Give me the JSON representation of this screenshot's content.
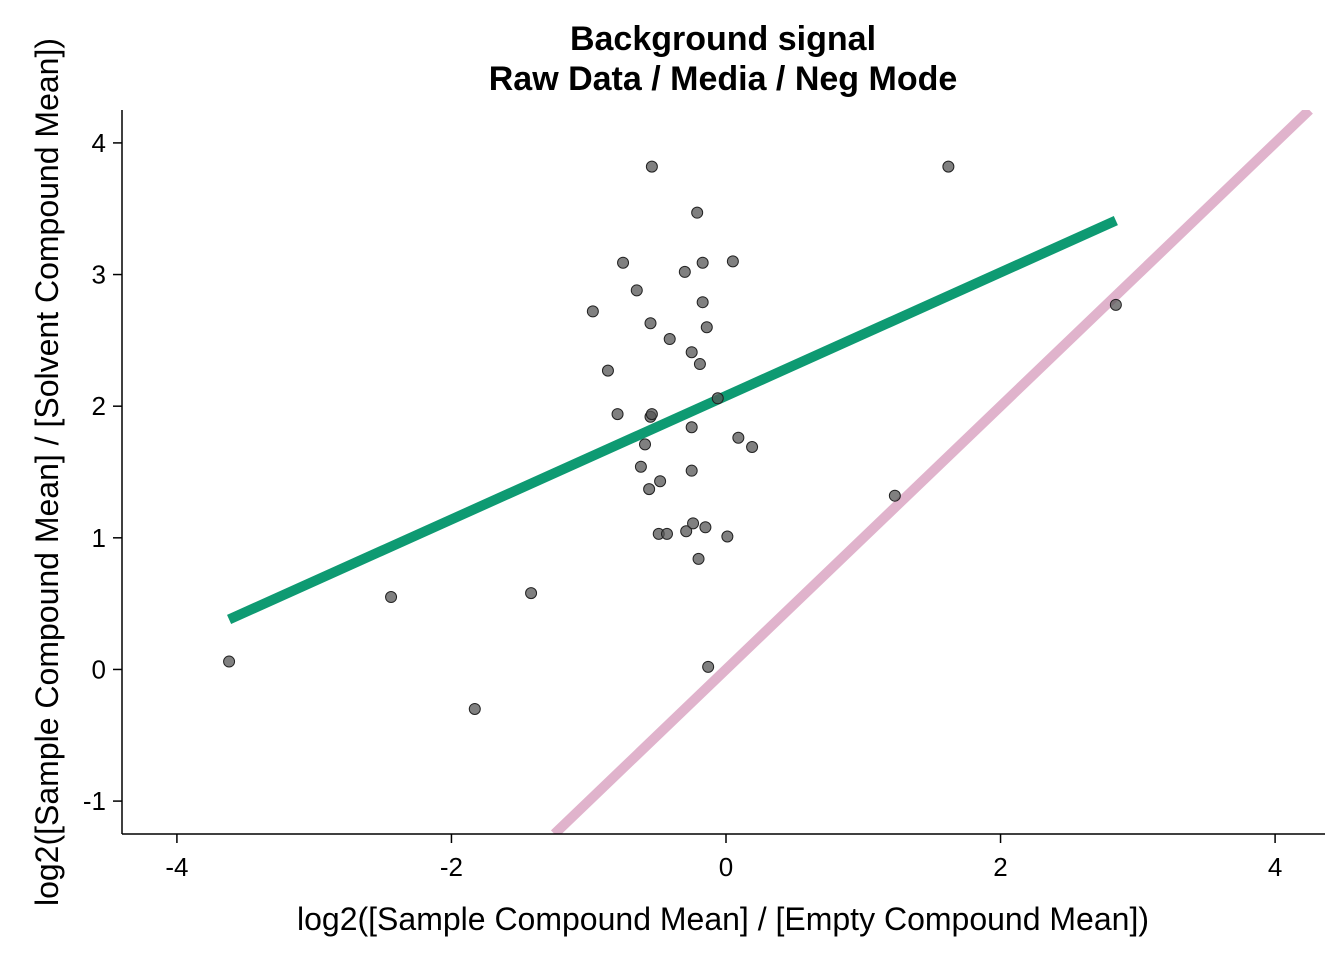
{
  "chart_data": {
    "type": "scatter",
    "title": "Background signal",
    "subtitle": "Raw Data / Media / Neg Mode",
    "xlabel": "log2([Sample Compound Mean] / [Empty Compound Mean])",
    "ylabel": "log2([Sample Compound Mean] / [Solvent Compound Mean])",
    "xlim": [
      -4.4,
      4.4
    ],
    "ylim": [
      -1.25,
      4.25
    ],
    "x_ticks": [
      -4,
      -2,
      0,
      2,
      4
    ],
    "y_ticks": [
      -1,
      0,
      1,
      2,
      3,
      4
    ],
    "x_tick_labels": [
      "-4",
      "-2",
      "0",
      "2",
      "4"
    ],
    "y_tick_labels": [
      "-1",
      "0",
      "1",
      "2",
      "3",
      "4"
    ],
    "grid": false,
    "points": [
      [
        -3.62,
        0.06
      ],
      [
        -2.44,
        0.55
      ],
      [
        -1.83,
        -0.3
      ],
      [
        -1.42,
        0.58
      ],
      [
        -0.97,
        2.72
      ],
      [
        -0.86,
        2.27
      ],
      [
        -0.79,
        1.94
      ],
      [
        -0.75,
        3.09
      ],
      [
        -0.65,
        2.88
      ],
      [
        -0.62,
        1.54
      ],
      [
        -0.59,
        1.71
      ],
      [
        -0.56,
        1.37
      ],
      [
        -0.55,
        2.63
      ],
      [
        -0.55,
        1.92
      ],
      [
        -0.54,
        1.94
      ],
      [
        -0.54,
        3.82
      ],
      [
        -0.49,
        1.03
      ],
      [
        -0.48,
        1.43
      ],
      [
        -0.43,
        1.03
      ],
      [
        -0.41,
        2.51
      ],
      [
        -0.3,
        3.02
      ],
      [
        -0.29,
        1.05
      ],
      [
        -0.25,
        2.41
      ],
      [
        -0.25,
        1.84
      ],
      [
        -0.25,
        1.51
      ],
      [
        -0.24,
        1.11
      ],
      [
        -0.21,
        3.47
      ],
      [
        -0.2,
        0.84
      ],
      [
        -0.19,
        2.32
      ],
      [
        -0.17,
        2.79
      ],
      [
        -0.17,
        3.09
      ],
      [
        -0.15,
        1.08
      ],
      [
        -0.14,
        2.6
      ],
      [
        -0.13,
        0.02
      ],
      [
        -0.06,
        2.06
      ],
      [
        0.01,
        1.01
      ],
      [
        0.05,
        3.1
      ],
      [
        0.09,
        1.76
      ],
      [
        0.19,
        1.69
      ],
      [
        1.23,
        1.32
      ],
      [
        1.62,
        3.82
      ],
      [
        2.84,
        2.77
      ]
    ],
    "lines": [
      {
        "kind": "fit",
        "color": "#0E9A72",
        "x": [
          -3.62,
          2.84
        ],
        "y": [
          0.38,
          3.41
        ]
      },
      {
        "kind": "identity",
        "color": "#E0B3CC",
        "x": [
          -1.25,
          4.25
        ],
        "y": [
          -1.25,
          4.25
        ]
      }
    ],
    "point_color": "#555555"
  }
}
